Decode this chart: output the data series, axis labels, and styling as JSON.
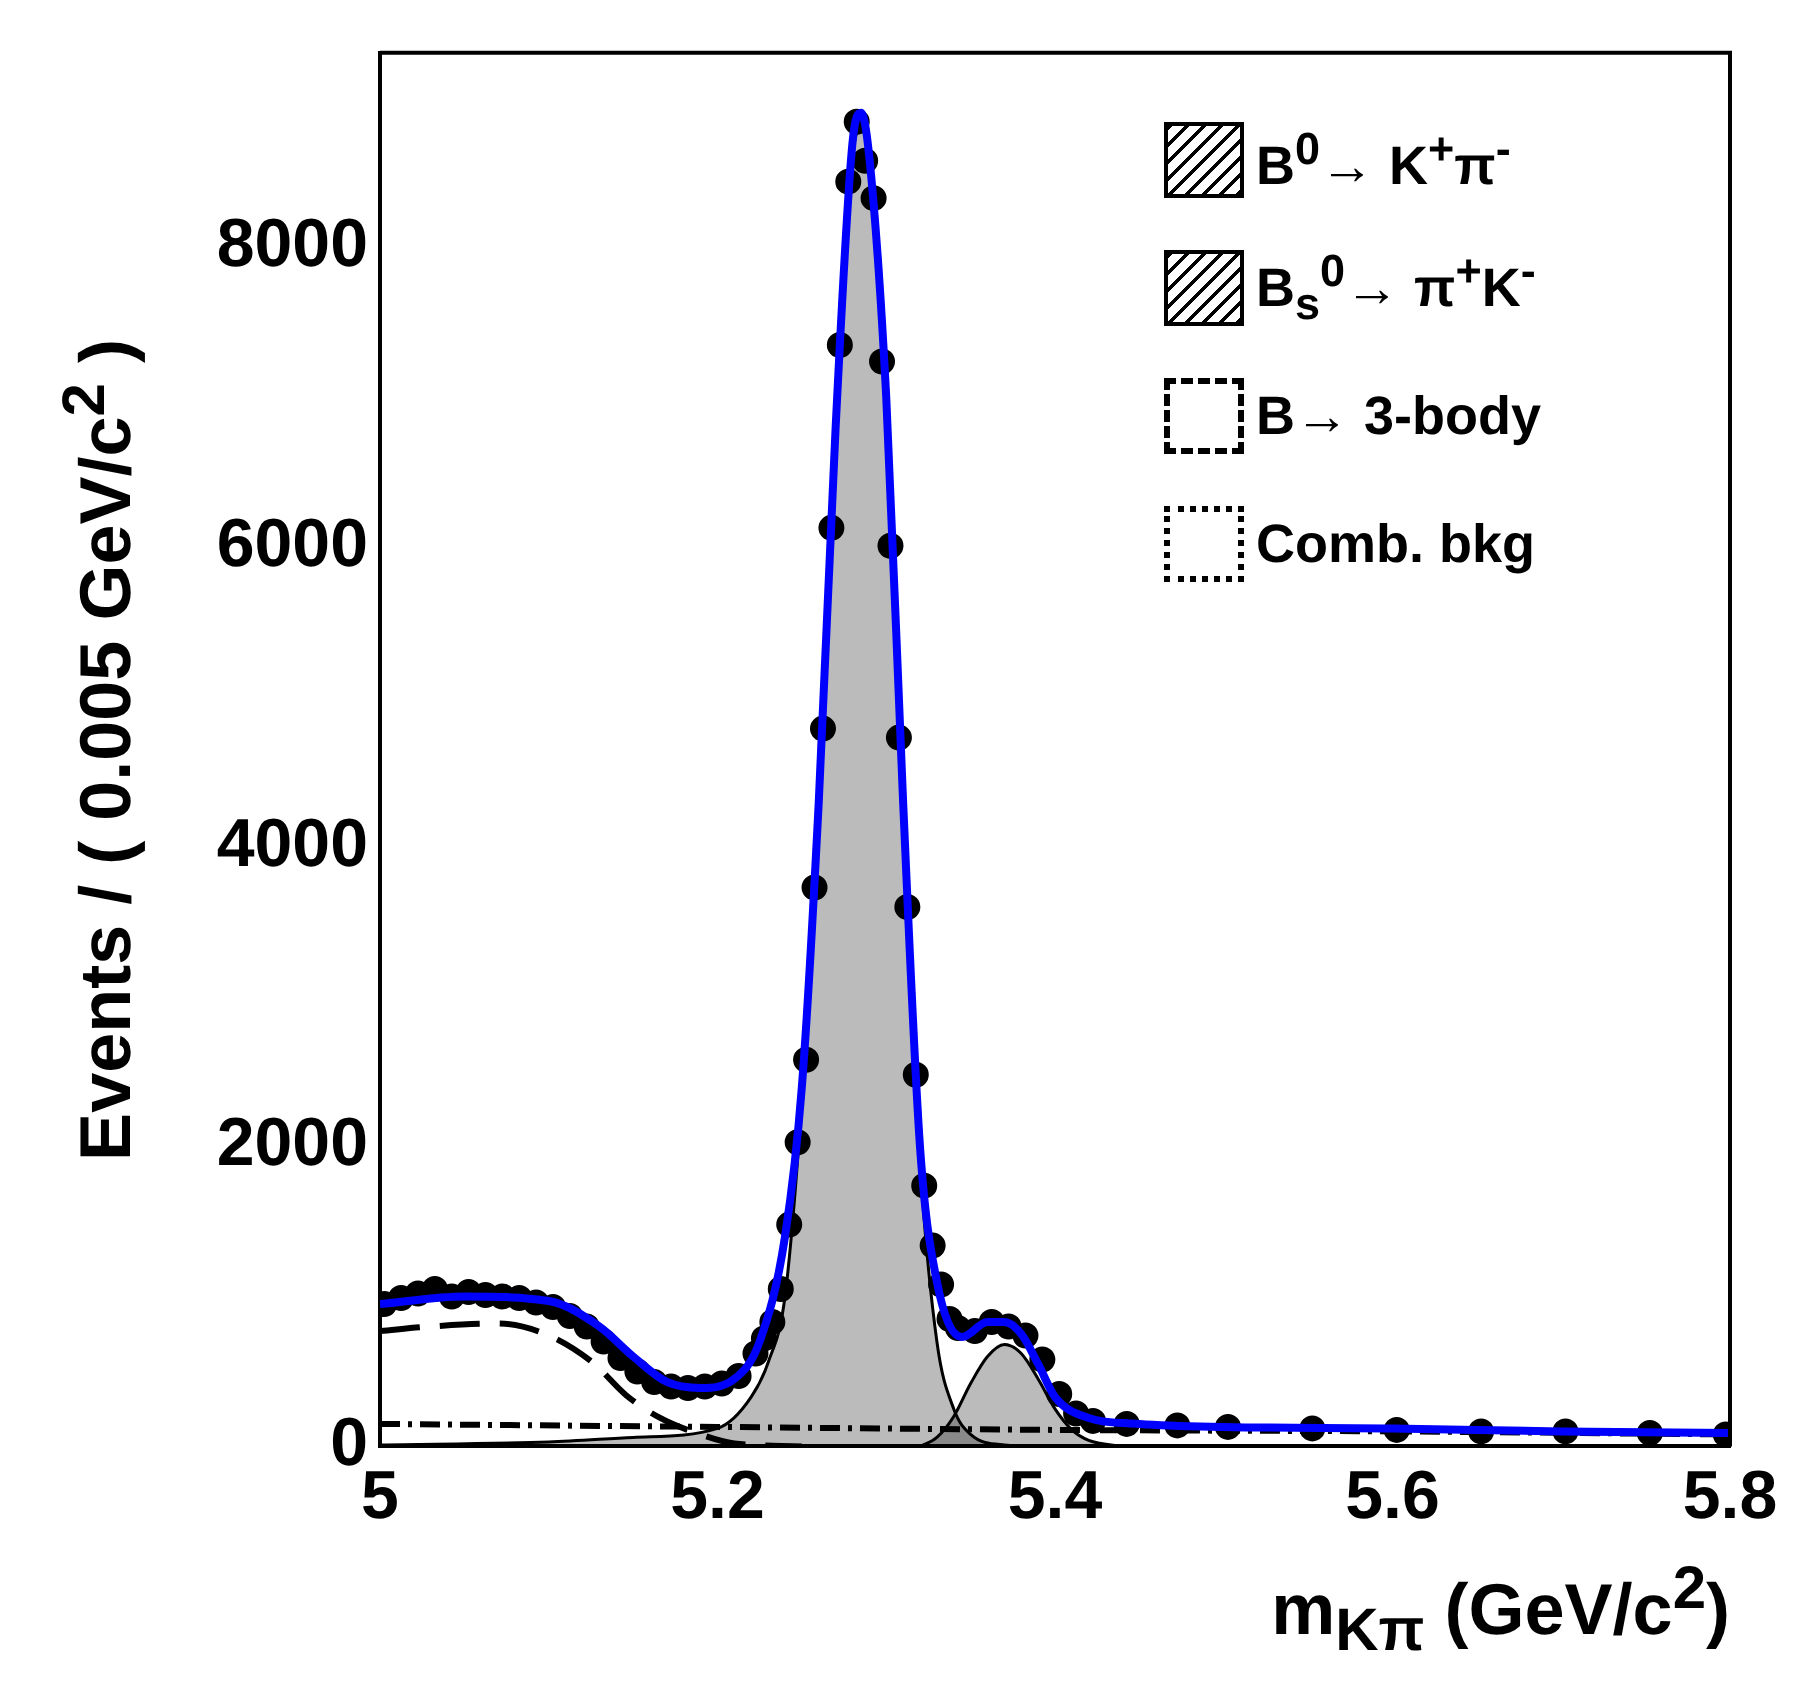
{
  "chart_data": {
    "type": "line",
    "xlabel": "m$_{Kπ}$ (GeV/c$^{2}$)",
    "ylabel": "Events / ( 0.005 GeV/c$^{2}$ )",
    "xlim": [
      5,
      5.8
    ],
    "xticks": [
      5,
      5.2,
      5.4,
      5.6,
      5.8
    ],
    "ylim": [
      0,
      9300
    ],
    "yticks": [
      0,
      2000,
      4000,
      6000,
      8000
    ],
    "grid": false,
    "legend": "top right",
    "series": [
      {
        "type": "area",
        "name": "B$^{0}$→ K$^{+}$π$^{-}$",
        "color": "#000000",
        "x": [
          5.0,
          5.1,
          5.15,
          5.2,
          5.22,
          5.23,
          5.24,
          5.25,
          5.26,
          5.27,
          5.28,
          5.285,
          5.29,
          5.3,
          5.31,
          5.32,
          5.33,
          5.34,
          5.35,
          5.37,
          5.4
        ],
        "values": [
          10,
          30,
          60,
          120,
          330,
          560,
          1000,
          2300,
          4200,
          6700,
          8600,
          8800,
          8550,
          6950,
          4250,
          1900,
          700,
          250,
          80,
          10,
          0
        ]
      },
      {
        "type": "area",
        "name": "B$_{s}$$^{0}$→ π$^{+}$K$^{-}$",
        "color": "#000000",
        "x": [
          5.32,
          5.33,
          5.34,
          5.35,
          5.36,
          5.37,
          5.38,
          5.39,
          5.4,
          5.41,
          5.42,
          5.44
        ],
        "values": [
          0,
          60,
          200,
          420,
          600,
          680,
          620,
          450,
          250,
          110,
          40,
          0
        ]
      },
      {
        "type": "line",
        "name": "B→ 3-body",
        "color": "#000000",
        "line_style": "dashed",
        "x": [
          5.0,
          5.03,
          5.07,
          5.1,
          5.126,
          5.146,
          5.166,
          5.19,
          5.21,
          5.25
        ],
        "values": [
          770,
          800,
          820,
          740,
          560,
          340,
          190,
          80,
          20,
          0
        ]
      },
      {
        "type": "line",
        "name": "Comb. bkg",
        "color": "#000000",
        "line_style": "dotted",
        "x": [
          5.0,
          5.2,
          5.4,
          5.6,
          5.8
        ],
        "values": [
          150,
          130,
          110,
          100,
          80
        ]
      },
      {
        "type": "scatter",
        "color": "#000000",
        "marker": "circle",
        "x": [
          5.0025,
          5.0125,
          5.0225,
          5.0325,
          5.0425,
          5.0525,
          5.0625,
          5.0725,
          5.0825,
          5.0925,
          5.1025,
          5.1125,
          5.1225,
          5.1325,
          5.1425,
          5.1525,
          5.1625,
          5.1725,
          5.1825,
          5.1925,
          5.2025,
          5.2125,
          5.2225,
          5.2275,
          5.2325,
          5.2375,
          5.2425,
          5.2475,
          5.2525,
          5.2575,
          5.2625,
          5.2675,
          5.2725,
          5.2775,
          5.2825,
          5.2875,
          5.2925,
          5.2975,
          5.3025,
          5.3075,
          5.3125,
          5.3175,
          5.3225,
          5.3275,
          5.3325,
          5.3375,
          5.3425,
          5.3525,
          5.3625,
          5.3725,
          5.3825,
          5.3925,
          5.4025,
          5.4125,
          5.4225,
          5.4425,
          5.4725,
          5.5025,
          5.5525,
          5.6025,
          5.6525,
          5.7025,
          5.7525,
          5.7975
        ],
        "values": [
          950,
          990,
          1020,
          1050,
          1000,
          1030,
          1010,
          1000,
          990,
          960,
          930,
          870,
          800,
          700,
          590,
          500,
          430,
          400,
          390,
          400,
          420,
          470,
          620,
          720,
          830,
          1050,
          1480,
          2030,
          2580,
          3730,
          4790,
          6130,
          7350,
          8440,
          8840,
          8580,
          8330,
          7240,
          6010,
          4730,
          3600,
          2480,
          1740,
          1340,
          1080,
          850,
          790,
          770,
          830,
          800,
          740,
          580,
          350,
          220,
          170,
          150,
          140,
          130,
          120,
          110,
          100,
          100,
          90,
          80
        ]
      },
      {
        "type": "line",
        "color": "#0000ff",
        "x": [
          5.0,
          5.05,
          5.1,
          5.13,
          5.15,
          5.17,
          5.19,
          5.21,
          5.225,
          5.24,
          5.25,
          5.26,
          5.27,
          5.28,
          5.285,
          5.29,
          5.3,
          5.31,
          5.32,
          5.33,
          5.345,
          5.36,
          5.37,
          5.38,
          5.39,
          5.4,
          5.42,
          5.45,
          5.5,
          5.6,
          5.7,
          5.8
        ],
        "values": [
          950,
          1000,
          970,
          800,
          600,
          430,
          390,
          450,
          700,
          1400,
          2400,
          4300,
          6800,
          8700,
          8900,
          8600,
          7000,
          4300,
          2000,
          1100,
          730,
          830,
          830,
          750,
          550,
          330,
          190,
          150,
          130,
          120,
          100,
          90
        ]
      }
    ]
  }
}
